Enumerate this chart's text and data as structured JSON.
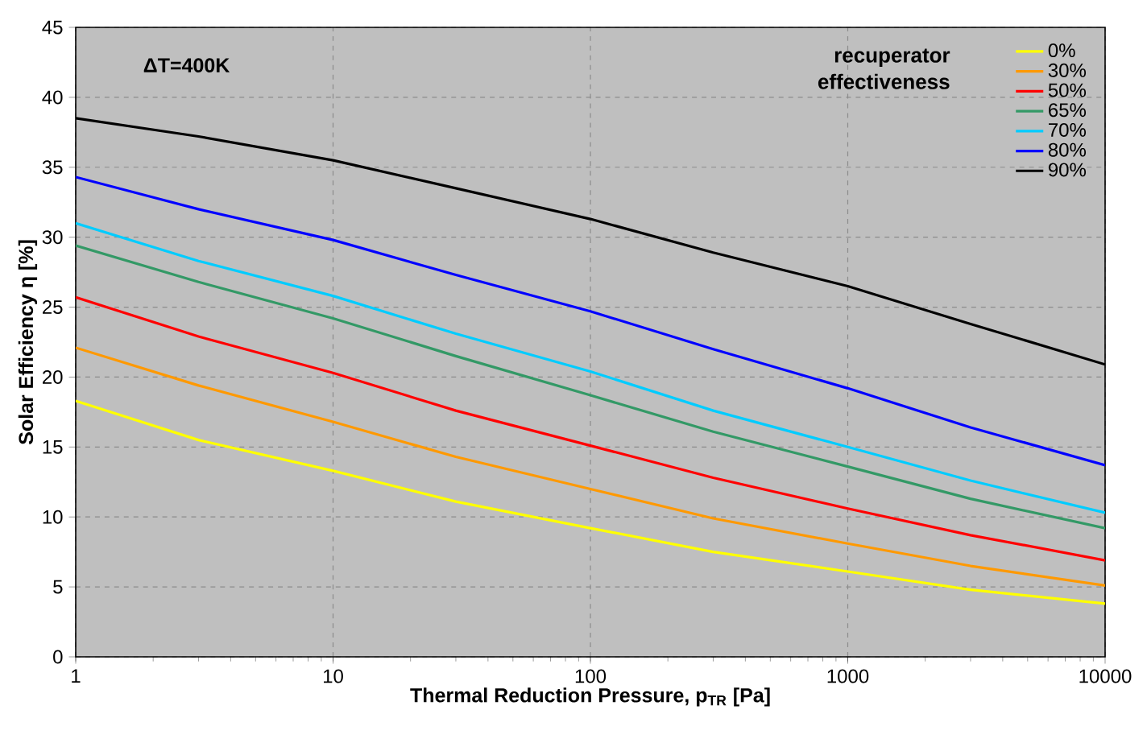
{
  "chart_data": {
    "type": "line",
    "xlabel": "Thermal Reduction Pressure, p$_{TR}$ [Pa]",
    "ylabel": "Solar Efficiency η [%]",
    "legend_title": "recuperator effectiveness",
    "annotations": [
      "ΔT=400K"
    ],
    "x": [
      1,
      3,
      10,
      30,
      100,
      300,
      1000,
      3000,
      10000
    ],
    "series": [
      {
        "name": "0%",
        "color": "#ffff00",
        "values": [
          18.3,
          15.5,
          13.3,
          11.1,
          9.2,
          7.5,
          6.1,
          4.8,
          3.8
        ]
      },
      {
        "name": "30%",
        "color": "#ff9900",
        "values": [
          22.1,
          19.4,
          16.8,
          14.3,
          12.0,
          9.9,
          8.1,
          6.5,
          5.1
        ]
      },
      {
        "name": "50%",
        "color": "#ff0000",
        "values": [
          25.7,
          22.9,
          20.3,
          17.6,
          15.1,
          12.8,
          10.6,
          8.7,
          6.9
        ]
      },
      {
        "name": "65%",
        "color": "#339966",
        "values": [
          29.4,
          26.8,
          24.2,
          21.5,
          18.7,
          16.1,
          13.6,
          11.3,
          9.2
        ]
      },
      {
        "name": "70%",
        "color": "#00ccff",
        "values": [
          31.0,
          28.3,
          25.8,
          23.1,
          20.4,
          17.6,
          15.0,
          12.6,
          10.3
        ]
      },
      {
        "name": "80%",
        "color": "#0000ff",
        "values": [
          34.3,
          32.0,
          29.8,
          27.3,
          24.7,
          22.0,
          19.2,
          16.4,
          13.7
        ]
      },
      {
        "name": "90%",
        "color": "#000000",
        "values": [
          38.5,
          37.2,
          35.5,
          33.5,
          31.3,
          28.9,
          26.5,
          23.8,
          20.9
        ]
      }
    ],
    "xlim": [
      1,
      10000
    ],
    "ylim": [
      0,
      45
    ],
    "xticks": [
      1,
      10,
      100,
      1000,
      10000
    ],
    "yticks": [
      0,
      5,
      10,
      15,
      20,
      25,
      30,
      35,
      40,
      45
    ],
    "log": "x",
    "grid": true,
    "legend": "top right",
    "marker": "none",
    "line_style": "solid"
  }
}
